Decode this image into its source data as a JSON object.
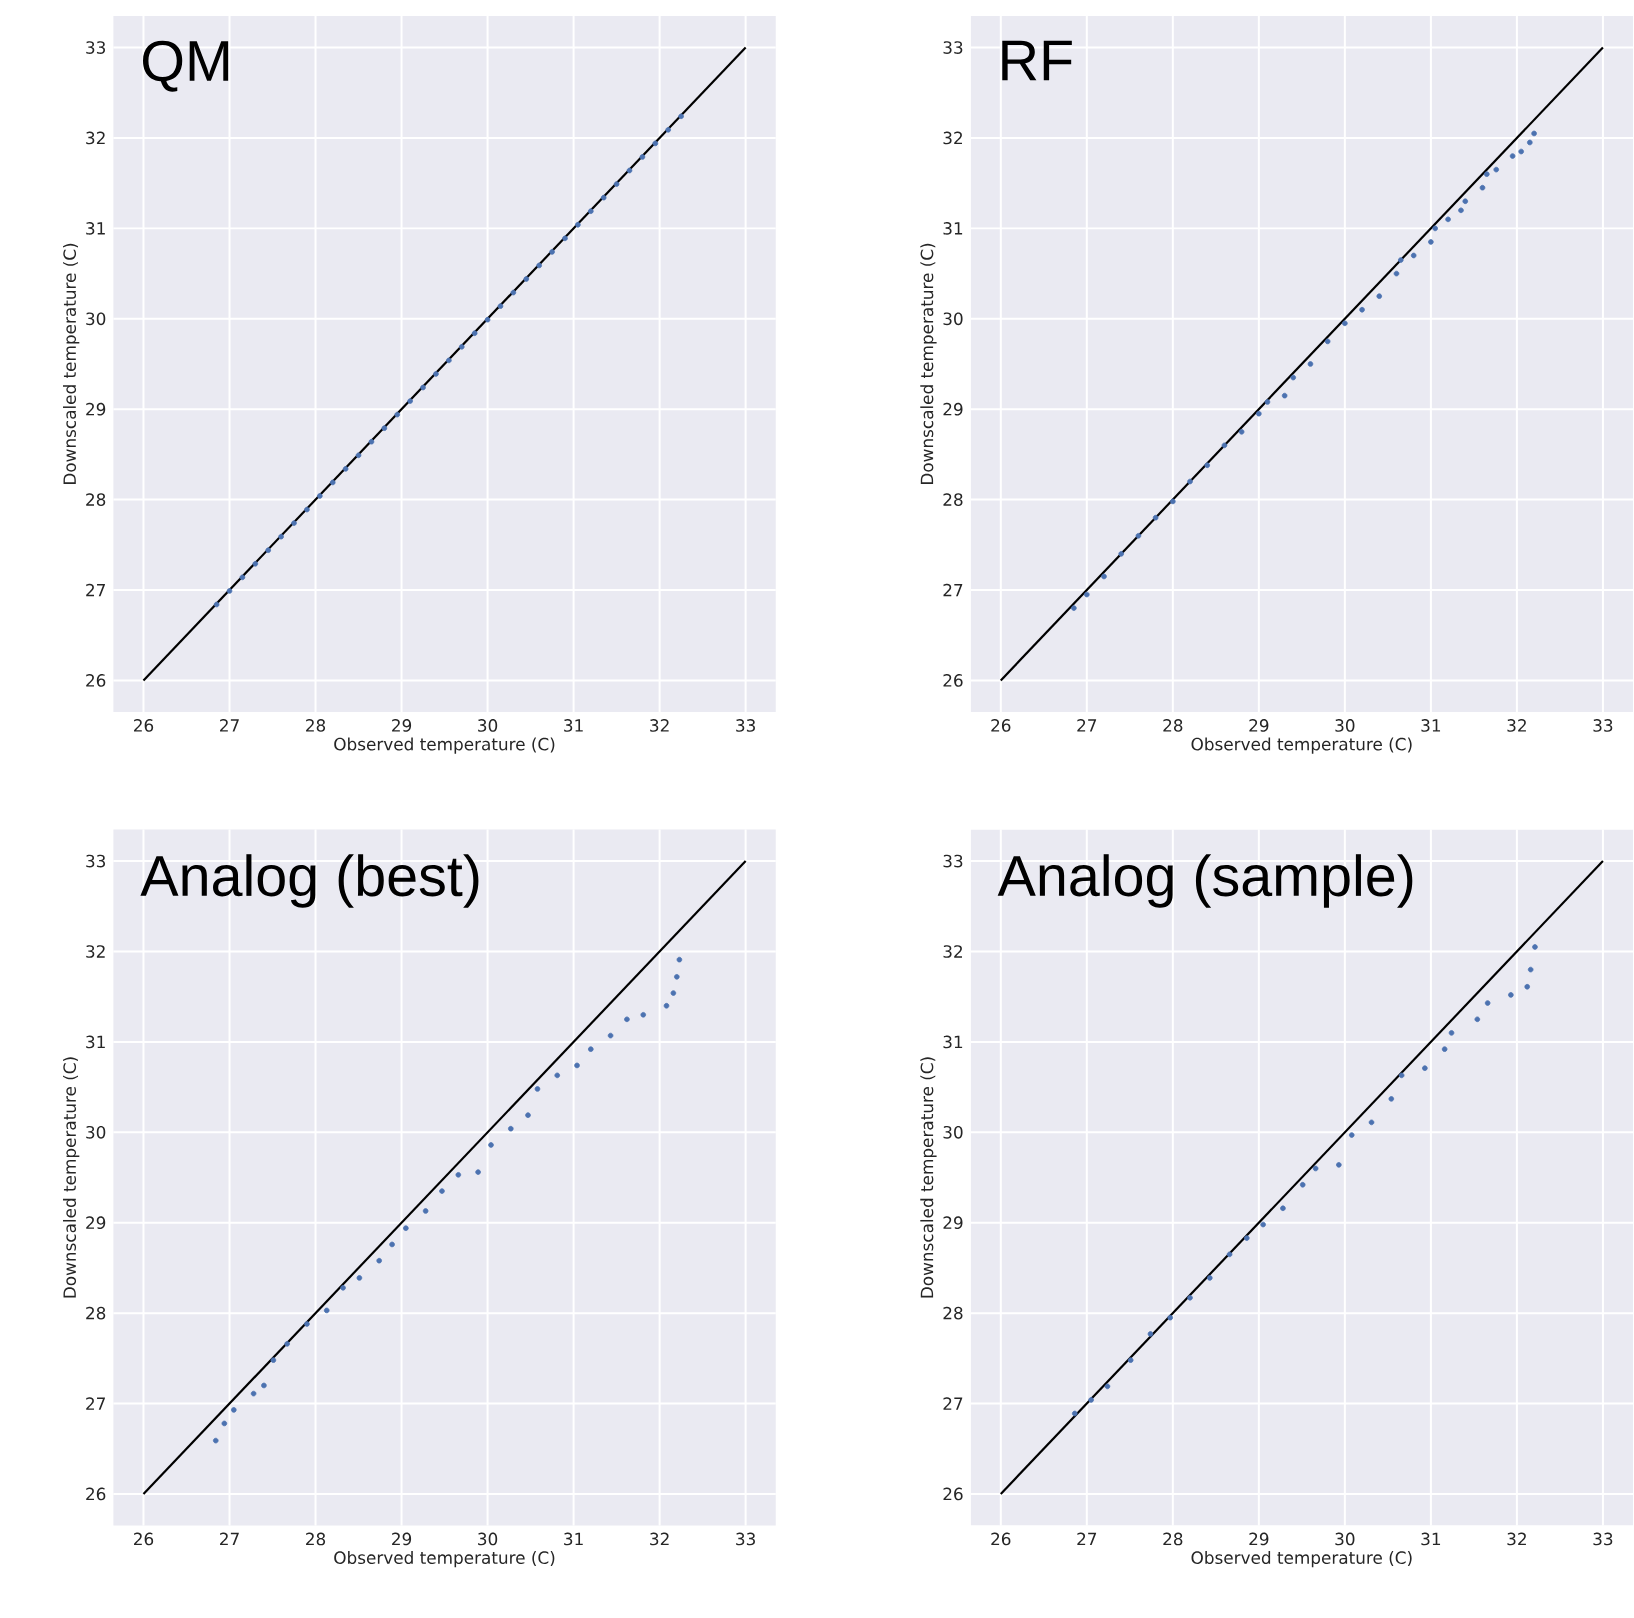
{
  "chart_data": [
    {
      "type": "scatter",
      "annotations": [
        "QM"
      ],
      "xlabel": "Observed temperature (C)",
      "ylabel": "Downscaled temperature (C)",
      "xlim": [
        25.65,
        33.35
      ],
      "ylim": [
        25.65,
        33.35
      ],
      "xticks": [
        26,
        27,
        28,
        29,
        30,
        31,
        32,
        33
      ],
      "yticks": [
        26,
        27,
        28,
        29,
        30,
        31,
        32,
        33
      ],
      "grid": true,
      "series": [
        {
          "marker": "circle",
          "color": "#4c72b0",
          "x": [
            26.85,
            27.0,
            27.15,
            27.3,
            27.45,
            27.6,
            27.75,
            27.9,
            28.05,
            28.2,
            28.35,
            28.5,
            28.65,
            28.8,
            28.95,
            29.1,
            29.25,
            29.4,
            29.55,
            29.7,
            29.85,
            30.0,
            30.15,
            30.3,
            30.45,
            30.6,
            30.75,
            30.9,
            31.05,
            31.2,
            31.35,
            31.5,
            31.65,
            31.8,
            31.95,
            32.1,
            32.25
          ],
          "values": [
            26.84,
            26.99,
            27.14,
            27.29,
            27.44,
            27.59,
            27.74,
            27.89,
            28.04,
            28.19,
            28.34,
            28.49,
            28.64,
            28.79,
            28.94,
            29.09,
            29.24,
            29.39,
            29.54,
            29.69,
            29.84,
            29.99,
            30.14,
            30.29,
            30.44,
            30.59,
            30.74,
            30.89,
            31.04,
            31.19,
            31.34,
            31.49,
            31.64,
            31.79,
            31.94,
            32.09,
            32.24
          ]
        },
        {
          "type": "line",
          "marker": "none",
          "color": "#000000",
          "x": [
            26,
            33
          ],
          "values": [
            26,
            33
          ]
        }
      ]
    },
    {
      "type": "scatter",
      "annotations": [
        "RF"
      ],
      "xlabel": "Observed temperature (C)",
      "ylabel": "Downscaled temperature (C)",
      "xlim": [
        25.65,
        33.35
      ],
      "ylim": [
        25.65,
        33.35
      ],
      "xticks": [
        26,
        27,
        28,
        29,
        30,
        31,
        32,
        33
      ],
      "yticks": [
        26,
        27,
        28,
        29,
        30,
        31,
        32,
        33
      ],
      "grid": true,
      "series": [
        {
          "marker": "circle",
          "color": "#4c72b0",
          "x": [
            26.85,
            27.0,
            27.2,
            27.4,
            27.6,
            27.8,
            28.0,
            28.2,
            28.4,
            28.6,
            28.8,
            29.0,
            29.1,
            29.3,
            29.4,
            29.6,
            29.8,
            30.0,
            30.2,
            30.4,
            30.6,
            30.65,
            30.8,
            31.0,
            31.05,
            31.2,
            31.35,
            31.4,
            31.6,
            31.65,
            31.76,
            31.95,
            32.05,
            32.15,
            32.2
          ],
          "values": [
            26.8,
            26.95,
            27.15,
            27.4,
            27.6,
            27.8,
            27.98,
            28.2,
            28.38,
            28.6,
            28.75,
            28.95,
            29.08,
            29.15,
            29.35,
            29.5,
            29.75,
            29.95,
            30.1,
            30.25,
            30.5,
            30.65,
            30.7,
            30.85,
            31.0,
            31.1,
            31.2,
            31.3,
            31.45,
            31.6,
            31.65,
            31.8,
            31.85,
            31.95,
            32.05
          ]
        },
        {
          "type": "line",
          "marker": "none",
          "color": "#000000",
          "x": [
            26,
            33
          ],
          "values": [
            26,
            33
          ]
        }
      ]
    },
    {
      "type": "scatter",
      "annotations": [
        "Analog (best)"
      ],
      "xlabel": "Observed temperature (C)",
      "ylabel": "Downscaled temperature (C)",
      "xlim": [
        25.65,
        33.35
      ],
      "ylim": [
        25.65,
        33.35
      ],
      "xticks": [
        26,
        27,
        28,
        29,
        30,
        31,
        32,
        33
      ],
      "yticks": [
        26,
        27,
        28,
        29,
        30,
        31,
        32,
        33
      ],
      "grid": true,
      "series": [
        {
          "marker": "circle",
          "color": "#4c72b0",
          "x": [
            26.84,
            26.94,
            27.05,
            27.28,
            27.4,
            27.51,
            27.67,
            27.9,
            28.13,
            28.32,
            28.51,
            28.74,
            28.89,
            29.05,
            29.28,
            29.47,
            29.66,
            29.89,
            30.04,
            30.27,
            30.47,
            30.58,
            30.81,
            31.04,
            31.2,
            31.43,
            31.62,
            31.81,
            32.08,
            32.16,
            32.2,
            32.23
          ],
          "values": [
            26.59,
            26.78,
            26.93,
            27.11,
            27.2,
            27.48,
            27.66,
            27.88,
            28.03,
            28.28,
            28.39,
            28.58,
            28.76,
            28.94,
            29.13,
            29.35,
            29.53,
            29.56,
            29.86,
            30.04,
            30.19,
            30.48,
            30.63,
            30.74,
            30.92,
            31.07,
            31.25,
            31.3,
            31.4,
            31.54,
            31.72,
            31.91
          ]
        },
        {
          "type": "line",
          "marker": "none",
          "color": "#000000",
          "x": [
            26,
            33
          ],
          "values": [
            26,
            33
          ]
        }
      ]
    },
    {
      "type": "scatter",
      "annotations": [
        "Analog (sample)"
      ],
      "xlabel": "Observed temperature (C)",
      "ylabel": "Downscaled temperature (C)",
      "xlim": [
        25.65,
        33.35
      ],
      "ylim": [
        25.65,
        33.35
      ],
      "xticks": [
        26,
        27,
        28,
        29,
        30,
        31,
        32,
        33
      ],
      "yticks": [
        26,
        27,
        28,
        29,
        30,
        31,
        32,
        33
      ],
      "grid": true,
      "series": [
        {
          "marker": "circle",
          "color": "#4c72b0",
          "x": [
            26.86,
            27.05,
            27.24,
            27.51,
            27.74,
            27.97,
            28.2,
            28.43,
            28.66,
            28.86,
            29.05,
            29.28,
            29.51,
            29.66,
            29.93,
            30.08,
            30.31,
            30.54,
            30.66,
            30.93,
            31.16,
            31.24,
            31.54,
            31.66,
            31.93,
            32.12,
            32.16,
            32.21
          ],
          "values": [
            26.89,
            27.04,
            27.19,
            27.48,
            27.77,
            27.95,
            28.17,
            28.39,
            28.65,
            28.83,
            28.98,
            29.16,
            29.42,
            29.6,
            29.64,
            29.97,
            30.11,
            30.37,
            30.63,
            30.71,
            30.92,
            31.1,
            31.25,
            31.43,
            31.52,
            31.61,
            31.8,
            32.05
          ]
        },
        {
          "type": "line",
          "marker": "none",
          "color": "#000000",
          "x": [
            26,
            33
          ],
          "values": [
            26,
            33
          ]
        }
      ]
    }
  ]
}
